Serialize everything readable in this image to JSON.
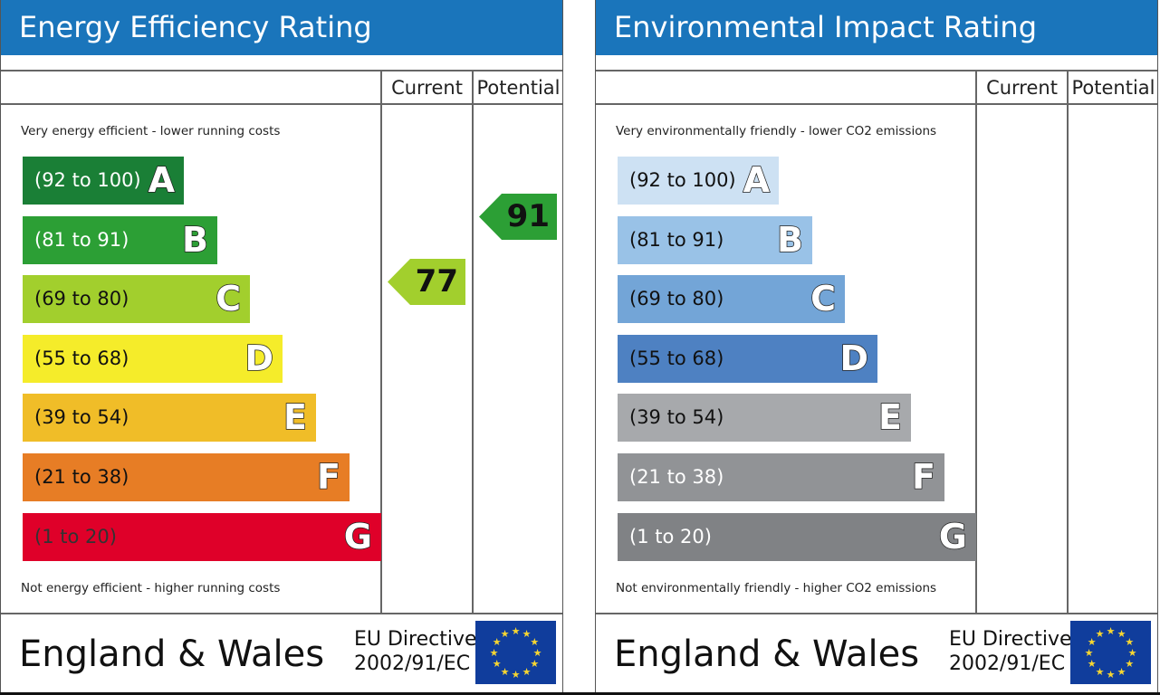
{
  "chart_data": [
    {
      "type": "bar",
      "title": "Energy Efficiency Rating",
      "columns": [
        "Current",
        "Potential"
      ],
      "top_caption": "Very energy efficient - lower running costs",
      "bottom_caption": "Not energy efficient - higher running costs",
      "bands": [
        {
          "range": "(92 to 100)",
          "letter": "A",
          "color": "#1a7f36",
          "text_color": "#ffffff"
        },
        {
          "range": "(81 to 91)",
          "letter": "B",
          "color": "#2c9f35",
          "text_color": "#ffffff"
        },
        {
          "range": "(69 to 80)",
          "letter": "C",
          "color": "#a2cf2d",
          "text_color": "#111111"
        },
        {
          "range": "(55 to 68)",
          "letter": "D",
          "color": "#f5ec2a",
          "text_color": "#111111"
        },
        {
          "range": "(39 to 54)",
          "letter": "E",
          "color": "#f0bd28",
          "text_color": "#111111"
        },
        {
          "range": "(21 to 38)",
          "letter": "F",
          "color": "#e77d25",
          "text_color": "#111111"
        },
        {
          "range": "(1 to 20)",
          "letter": "G",
          "color": "#df0029",
          "text_color": "#333333"
        }
      ],
      "current": {
        "value": 77,
        "band": "C",
        "color": "#a2cf2d"
      },
      "potential": {
        "value": 91,
        "band": "B",
        "color": "#2c9f35"
      },
      "footer": {
        "country": "England & Wales",
        "directive_line1": "EU Directive",
        "directive_line2": "2002/91/EC"
      }
    },
    {
      "type": "bar",
      "title": "Environmental Impact Rating",
      "columns": [
        "Current",
        "Potential"
      ],
      "top_caption": "Very environmentally friendly - lower CO2 emissions",
      "bottom_caption": "Not environmentally friendly - higher CO2 emissions",
      "bands": [
        {
          "range": "(92 to 100)",
          "letter": "A",
          "color": "#cde1f3",
          "text_color": "#111111"
        },
        {
          "range": "(81 to 91)",
          "letter": "B",
          "color": "#99c2e7",
          "text_color": "#111111"
        },
        {
          "range": "(69 to 80)",
          "letter": "C",
          "color": "#73a5d7",
          "text_color": "#111111"
        },
        {
          "range": "(55 to 68)",
          "letter": "D",
          "color": "#4e81c2",
          "text_color": "#111111"
        },
        {
          "range": "(39 to 54)",
          "letter": "E",
          "color": "#a7a9ac",
          "text_color": "#111111"
        },
        {
          "range": "(21 to 38)",
          "letter": "F",
          "color": "#919396",
          "text_color": "#ffffff"
        },
        {
          "range": "(1 to 20)",
          "letter": "G",
          "color": "#808285",
          "text_color": "#ffffff"
        }
      ],
      "current": null,
      "potential": null,
      "footer": {
        "country": "England & Wales",
        "directive_line1": "EU Directive",
        "directive_line2": "2002/91/EC"
      }
    }
  ]
}
